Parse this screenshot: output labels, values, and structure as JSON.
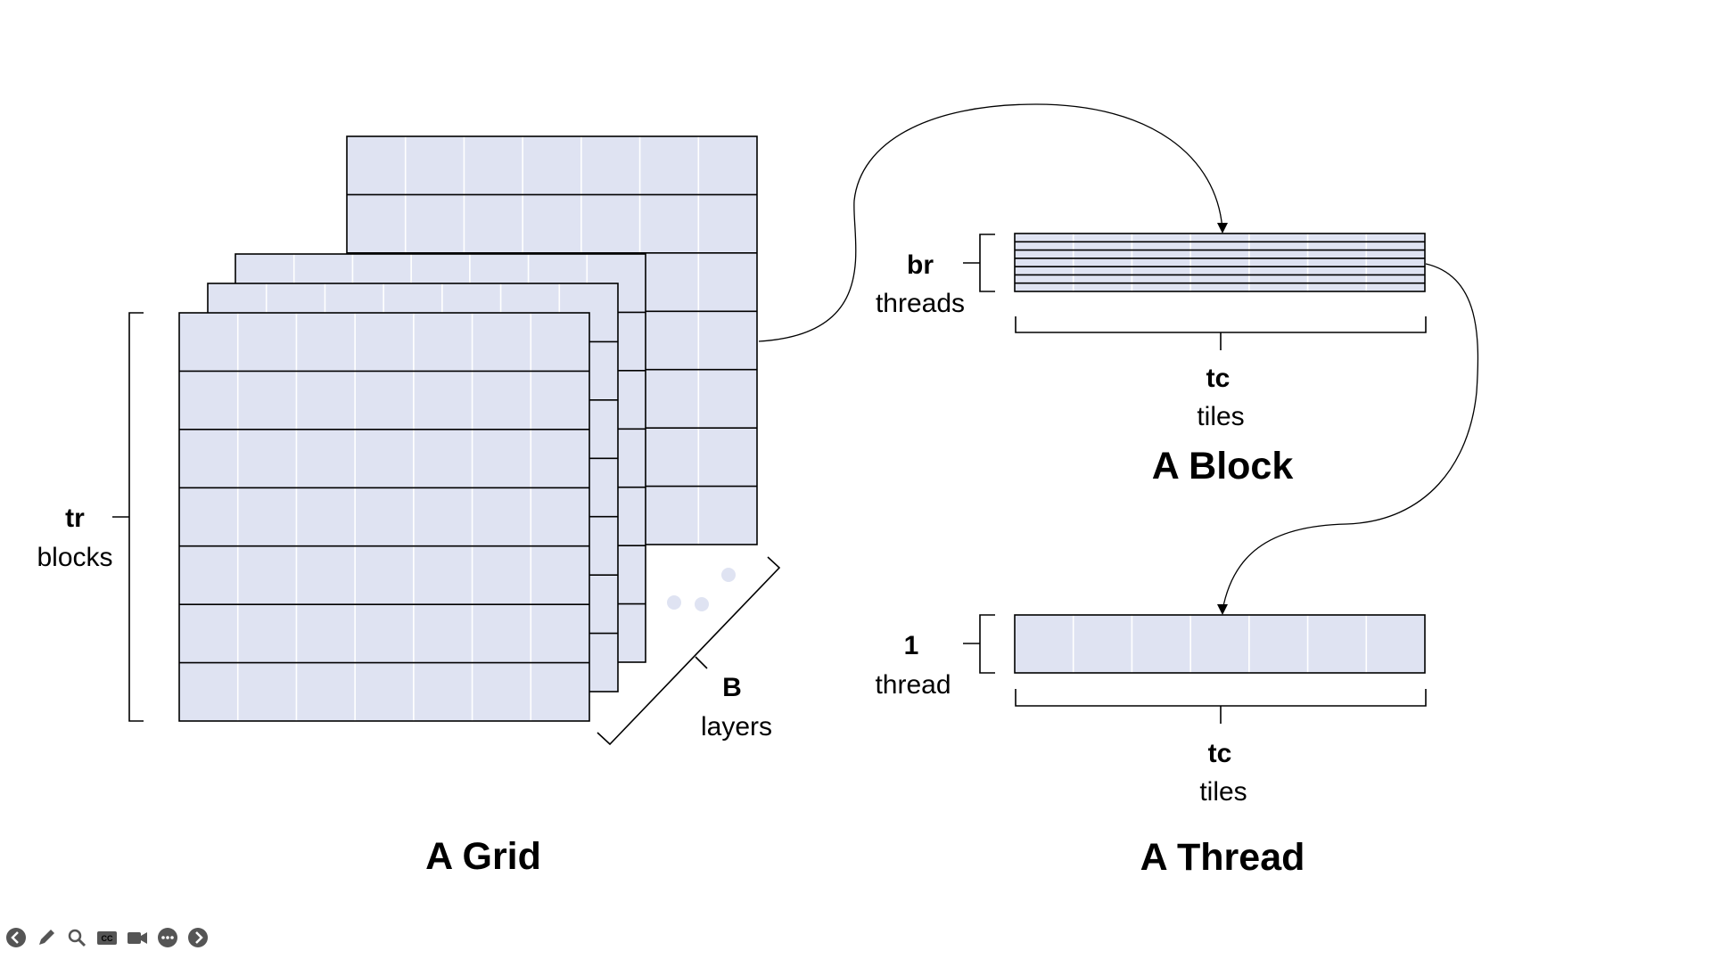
{
  "grid": {
    "title": "A Grid",
    "rows_label": "tr",
    "rows_sub": "blocks",
    "layers_label": "B",
    "layers_sub": "layers"
  },
  "block": {
    "title": "A Block",
    "rows_label": "br",
    "rows_sub": "threads",
    "cols_label": "tc",
    "cols_sub": "tiles"
  },
  "thread": {
    "title": "A Thread",
    "rows_label": "1",
    "rows_sub": "thread",
    "cols_label": "tc",
    "cols_sub": "tiles"
  },
  "colors": {
    "cell_fill": "#dfe3f2",
    "line": "#000000"
  },
  "toolbar": {
    "items": [
      "back-icon",
      "pen-icon",
      "zoom-icon",
      "captions-icon",
      "camera-icon",
      "more-icon",
      "forward-icon"
    ]
  }
}
